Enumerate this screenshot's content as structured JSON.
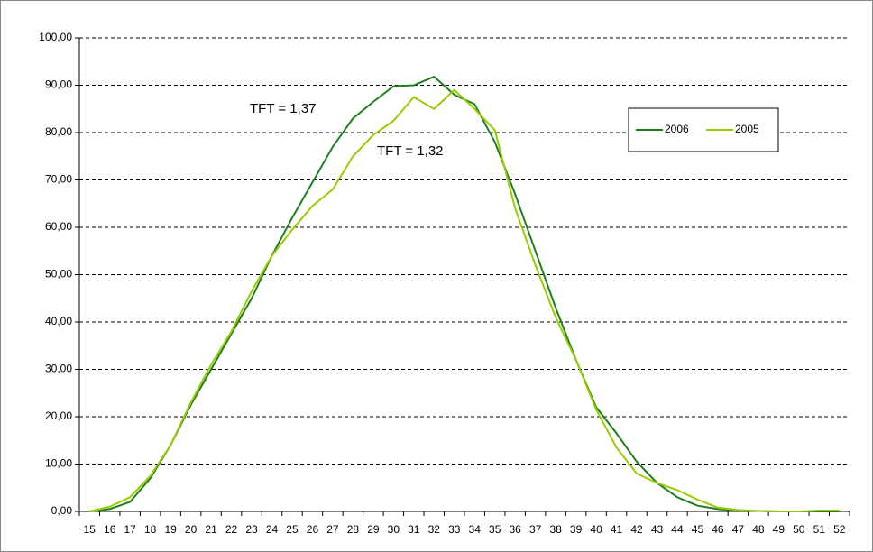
{
  "chart_data": {
    "type": "line",
    "categories": [
      "15",
      "16",
      "17",
      "18",
      "19",
      "20",
      "21",
      "22",
      "23",
      "24",
      "25",
      "26",
      "27",
      "28",
      "29",
      "30",
      "31",
      "32",
      "33",
      "34",
      "35",
      "36",
      "37",
      "38",
      "39",
      "40",
      "41",
      "42",
      "43",
      "44",
      "45",
      "46",
      "47",
      "48",
      "49",
      "50",
      "51",
      "52"
    ],
    "series": [
      {
        "name": "2006",
        "color": "#1f7f1f",
        "values": [
          0,
          0.5,
          2,
          7,
          14,
          22.5,
          30,
          37.5,
          45,
          54,
          62,
          69.5,
          77,
          83,
          86.5,
          89.8,
          90,
          91.8,
          88,
          86,
          78,
          67,
          55,
          43,
          32,
          22,
          16.5,
          10.5,
          6,
          3,
          1.2,
          0.5,
          0.2,
          0.1,
          0,
          0,
          0,
          0
        ]
      },
      {
        "name": "2005",
        "color": "#99cc00",
        "values": [
          0,
          1,
          3,
          7.5,
          14,
          23,
          31,
          38,
          46.5,
          54,
          59.5,
          64.5,
          68,
          75,
          79.5,
          82.5,
          87.5,
          85,
          89,
          85,
          80.5,
          64,
          52,
          41,
          32,
          21.5,
          13.5,
          8,
          6,
          4.5,
          2.5,
          0.8,
          0.3,
          0.1,
          0,
          0,
          0.2,
          0.2
        ]
      }
    ],
    "ylim": [
      0,
      100
    ],
    "yticks": [
      {
        "value": 0,
        "label": "0,00"
      },
      {
        "value": 10,
        "label": "10,00"
      },
      {
        "value": 20,
        "label": "20,00"
      },
      {
        "value": 30,
        "label": "30,00"
      },
      {
        "value": 40,
        "label": "40,00"
      },
      {
        "value": 50,
        "label": "50,00"
      },
      {
        "value": 60,
        "label": "60,00"
      },
      {
        "value": 70,
        "label": "70,00"
      },
      {
        "value": 80,
        "label": "80,00"
      },
      {
        "value": 90,
        "label": "90,00"
      },
      {
        "value": 100,
        "label": "100,00"
      }
    ],
    "grid": true,
    "legend_position": "right",
    "annotations": [
      "TFT = 1,37",
      "TFT = 1,32"
    ]
  }
}
